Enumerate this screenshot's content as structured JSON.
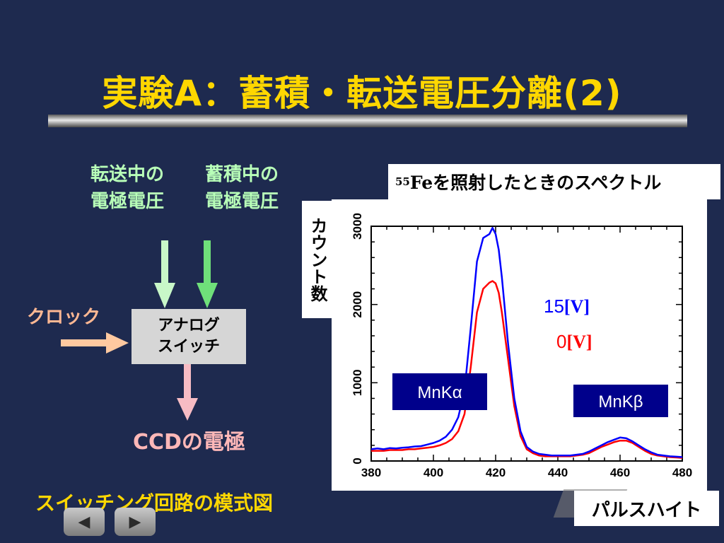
{
  "title": "実験A：蓄積・転送電圧分離(2)",
  "diagram": {
    "transfer_label_line1": "転送中の",
    "transfer_label_line2": "電極電圧",
    "storage_label_line1": "蓄積中の",
    "storage_label_line2": "電極電圧",
    "clock_label": "クロック",
    "switch_line1": "アナログ",
    "switch_line2": "スイッチ",
    "ccd_label": "CCDの電極",
    "caption": "スイッチング回路の模式図"
  },
  "colors": {
    "background": "#1e2a4f",
    "title": "#ffd700",
    "green_label": "#b8ffb8",
    "green_arrow": "#a8f5a8",
    "clock": "#ffb893",
    "ccd": "#ffb8b8",
    "series_15v": "#0000ff",
    "series_0v": "#ff0000",
    "peak_label_bg": "#00008b"
  },
  "chart_data": {
    "type": "line",
    "title_sup": "55",
    "title_main": "Feを照射したときのスペクトル",
    "xlabel": "パルスハイト",
    "ylabel": "カウント数",
    "xlim": [
      380,
      480
    ],
    "ylim": [
      0,
      3000
    ],
    "xticks": [
      380,
      400,
      420,
      440,
      460,
      480
    ],
    "yticks": [
      0,
      1000,
      2000,
      3000
    ],
    "annotations": {
      "peak1": "MnKα",
      "peak2": "MnKβ",
      "legend_15v_num": "15",
      "legend_15v_unit": "[V]",
      "legend_0v_num": "0",
      "legend_0v_unit": "[V]"
    },
    "series": [
      {
        "name": "15[V]",
        "color": "#0000ff",
        "x": [
          380,
          382,
          384,
          386,
          388,
          390,
          392,
          394,
          396,
          398,
          400,
          402,
          404,
          406,
          408,
          410,
          412,
          414,
          416,
          418,
          419,
          420,
          421,
          422,
          424,
          426,
          428,
          430,
          432,
          434,
          436,
          438,
          440,
          442,
          444,
          446,
          448,
          450,
          452,
          454,
          456,
          458,
          460,
          462,
          464,
          466,
          468,
          470,
          472,
          474,
          476,
          478,
          480
        ],
        "y": [
          150,
          160,
          150,
          165,
          160,
          170,
          175,
          185,
          190,
          210,
          230,
          260,
          310,
          400,
          560,
          900,
          1700,
          2550,
          2850,
          2900,
          2980,
          2900,
          2700,
          2350,
          1500,
          800,
          380,
          180,
          120,
          90,
          80,
          70,
          70,
          70,
          70,
          80,
          90,
          120,
          160,
          200,
          240,
          270,
          300,
          290,
          250,
          200,
          150,
          110,
          80,
          70,
          60,
          55,
          50
        ]
      },
      {
        "name": "0[V]",
        "color": "#ff0000",
        "x": [
          380,
          382,
          384,
          386,
          388,
          390,
          392,
          394,
          396,
          398,
          400,
          402,
          404,
          406,
          408,
          410,
          412,
          414,
          416,
          418,
          419,
          420,
          421,
          422,
          424,
          426,
          428,
          430,
          432,
          434,
          436,
          438,
          440,
          442,
          444,
          446,
          448,
          450,
          452,
          454,
          456,
          458,
          460,
          462,
          464,
          466,
          468,
          470,
          472,
          474,
          476,
          478,
          480
        ],
        "y": [
          130,
          130,
          130,
          140,
          140,
          140,
          150,
          150,
          160,
          170,
          180,
          200,
          230,
          280,
          380,
          600,
          1200,
          1900,
          2200,
          2280,
          2300,
          2270,
          2150,
          1900,
          1300,
          700,
          320,
          150,
          100,
          70,
          60,
          60,
          60,
          60,
          60,
          70,
          80,
          100,
          140,
          180,
          210,
          240,
          260,
          260,
          230,
          180,
          130,
          90,
          70,
          60,
          50,
          45,
          40
        ]
      }
    ]
  }
}
